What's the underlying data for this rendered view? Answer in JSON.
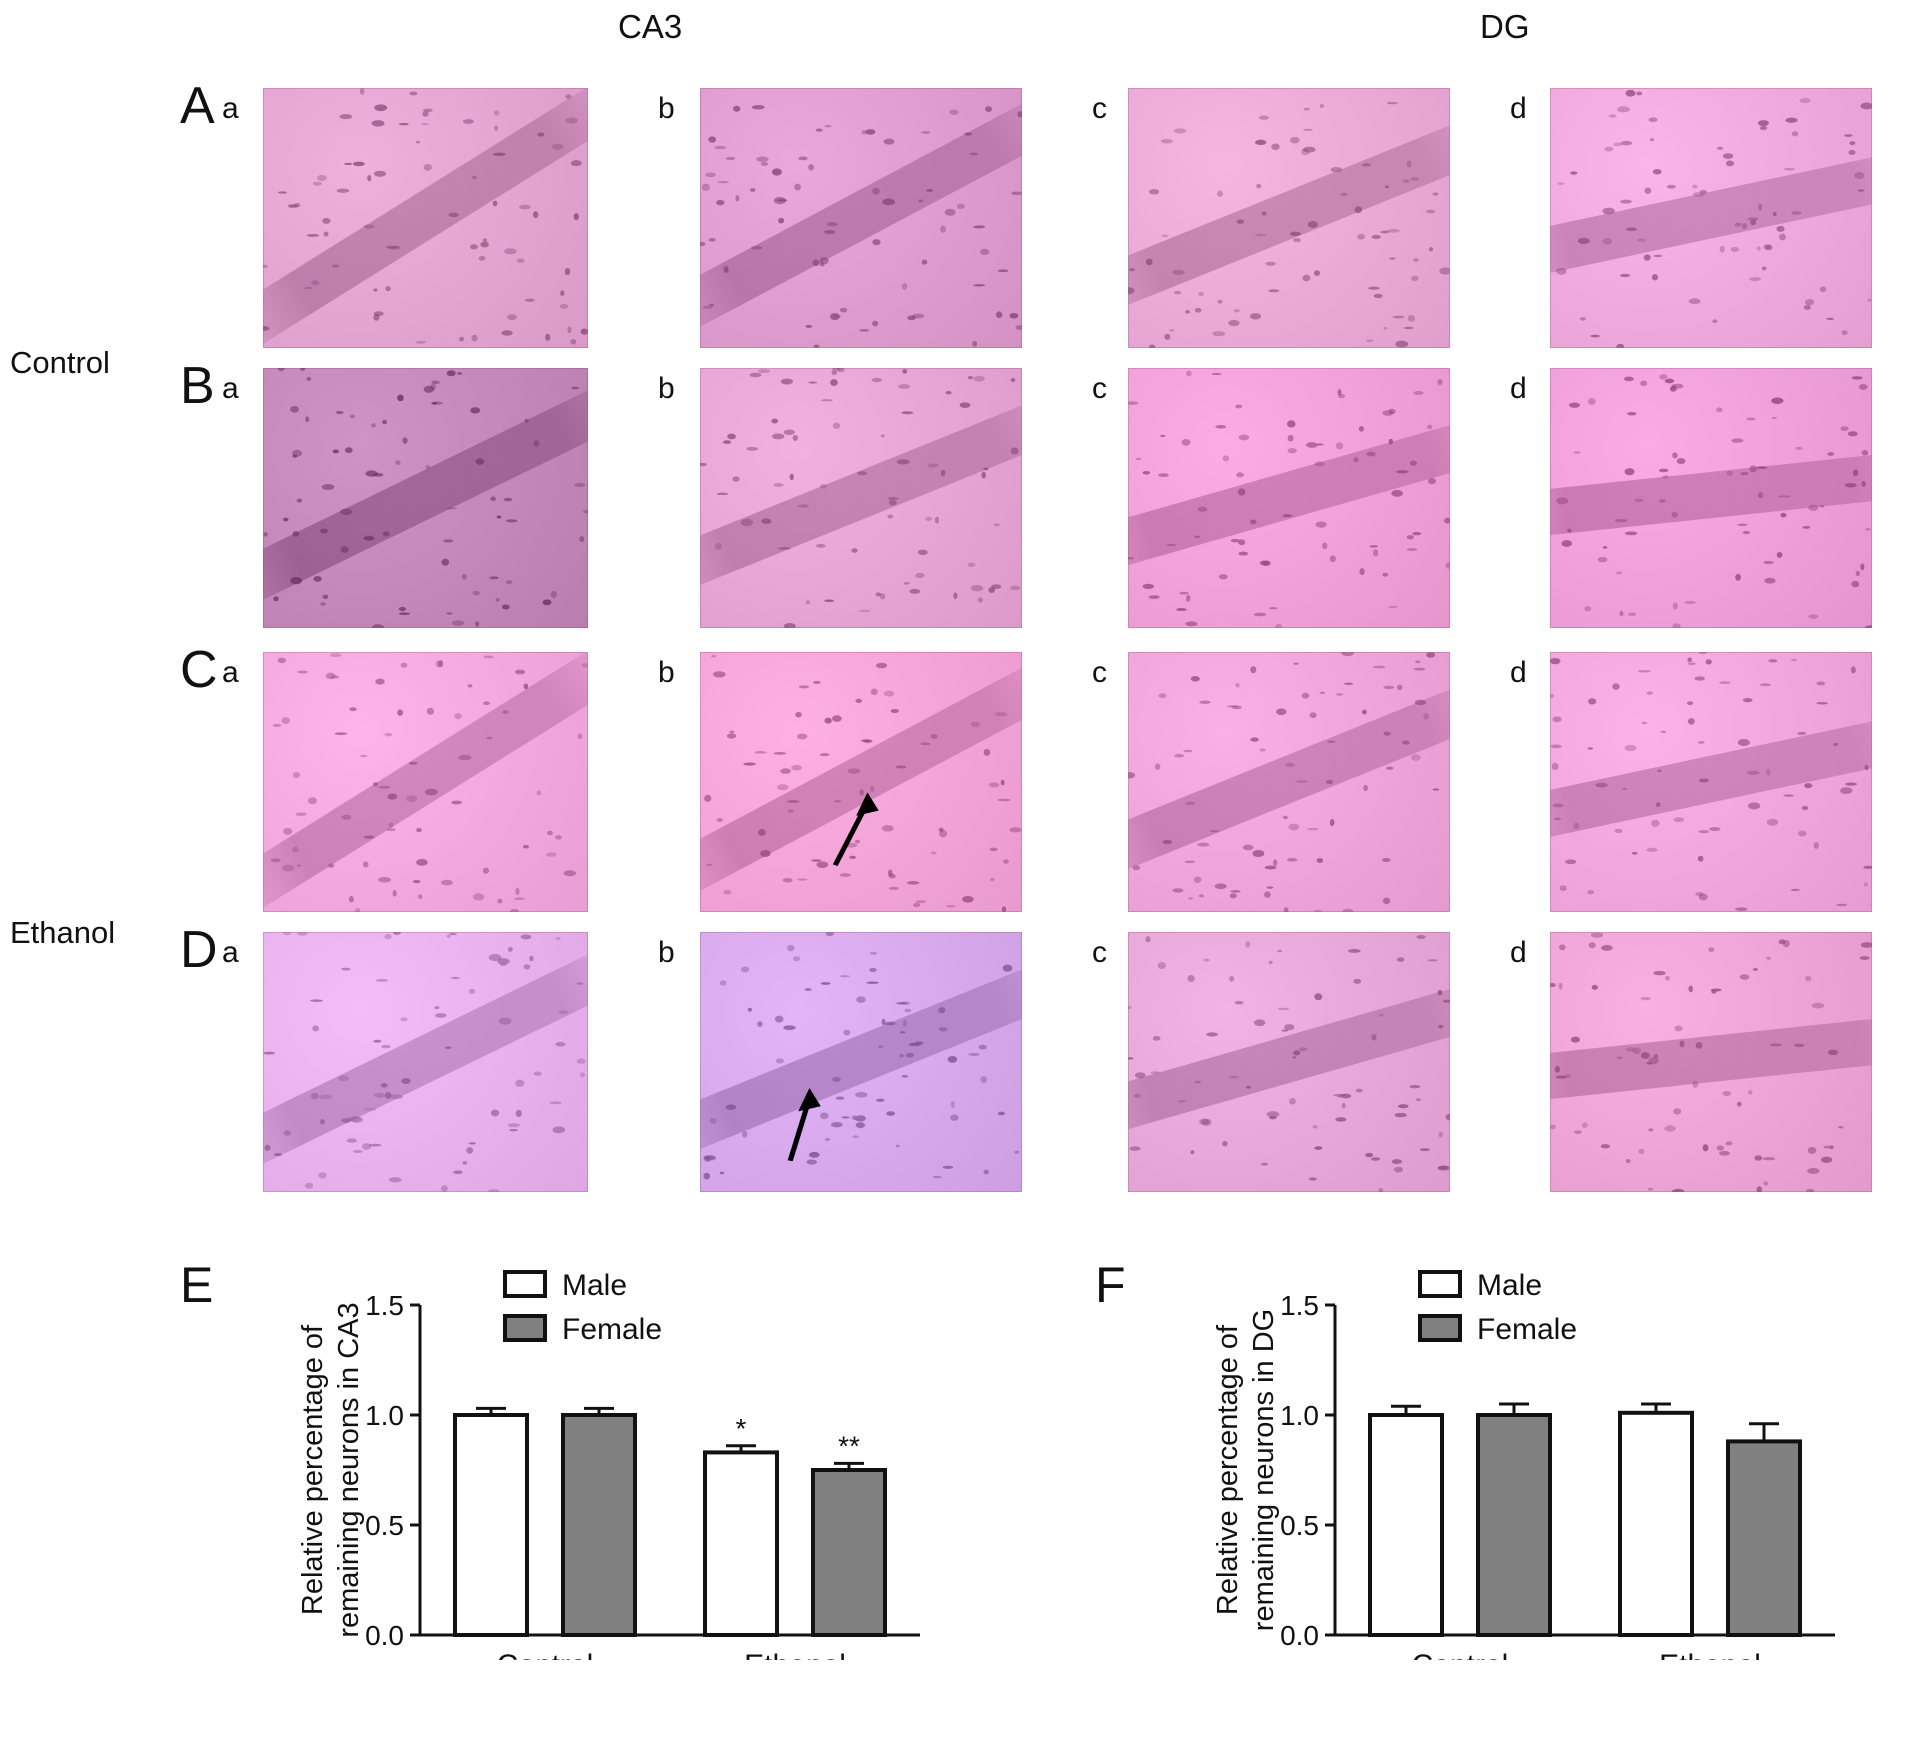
{
  "columns": {
    "left": "CA3",
    "right": "DG"
  },
  "groups": {
    "top": "Control",
    "bottom": "Ethanol"
  },
  "rows": [
    {
      "letter": "A",
      "subs": [
        "a",
        "b",
        "c",
        "d"
      ]
    },
    {
      "letter": "B",
      "subs": [
        "a",
        "b",
        "c",
        "d"
      ]
    },
    {
      "letter": "C",
      "subs": [
        "a",
        "b",
        "c",
        "d"
      ]
    },
    {
      "letter": "D",
      "subs": [
        "a",
        "b",
        "c",
        "d"
      ]
    }
  ],
  "tiles": [
    [
      "#e4a4d2",
      "#de9cce",
      "#eaa8d6",
      "#eea8dc"
    ],
    [
      "#c488b8",
      "#e6a4d4",
      "#f0a0d6",
      "#ee9ed8"
    ],
    [
      "#f2a8dc",
      "#f2a4d8",
      "#eea4d8",
      "#f0a6da"
    ],
    [
      "#e8b0ec",
      "#d8a8ec",
      "#e6a6d8",
      "#eca4d6"
    ]
  ],
  "colors": {
    "male": "#ffffff",
    "female": "#808080",
    "axis": "#111111"
  },
  "chart_data": [
    {
      "panel": "E",
      "type": "bar",
      "categories": [
        "Control",
        "Ethanol"
      ],
      "series": [
        {
          "name": "Male",
          "values": [
            1.0,
            0.83
          ],
          "errors": [
            0.03,
            0.03
          ]
        },
        {
          "name": "Female",
          "values": [
            1.0,
            0.75
          ],
          "errors": [
            0.03,
            0.03
          ]
        }
      ],
      "significance": [
        [
          "",
          ""
        ],
        [
          "*",
          "**"
        ]
      ],
      "ylabel": [
        "Relative percentage of",
        "remaining neurons in CA3"
      ],
      "ylim": [
        0,
        1.5
      ],
      "yticks": [
        "0.0",
        "0.5",
        "1.0",
        "1.5"
      ],
      "legend": "top-left",
      "grid": false
    },
    {
      "panel": "F",
      "type": "bar",
      "categories": [
        "Control",
        "Ethanol"
      ],
      "series": [
        {
          "name": "Male",
          "values": [
            1.0,
            1.01
          ],
          "errors": [
            0.04,
            0.04
          ]
        },
        {
          "name": "Female",
          "values": [
            1.0,
            0.88
          ],
          "errors": [
            0.05,
            0.08
          ]
        }
      ],
      "significance": [
        [
          "",
          ""
        ],
        [
          "",
          ""
        ]
      ],
      "ylabel": [
        "Relative percentage of",
        "remaining neurons in DG"
      ],
      "ylim": [
        0,
        1.5
      ],
      "yticks": [
        "0.0",
        "0.5",
        "1.0",
        "1.5"
      ],
      "legend": "top-left",
      "grid": false
    }
  ]
}
